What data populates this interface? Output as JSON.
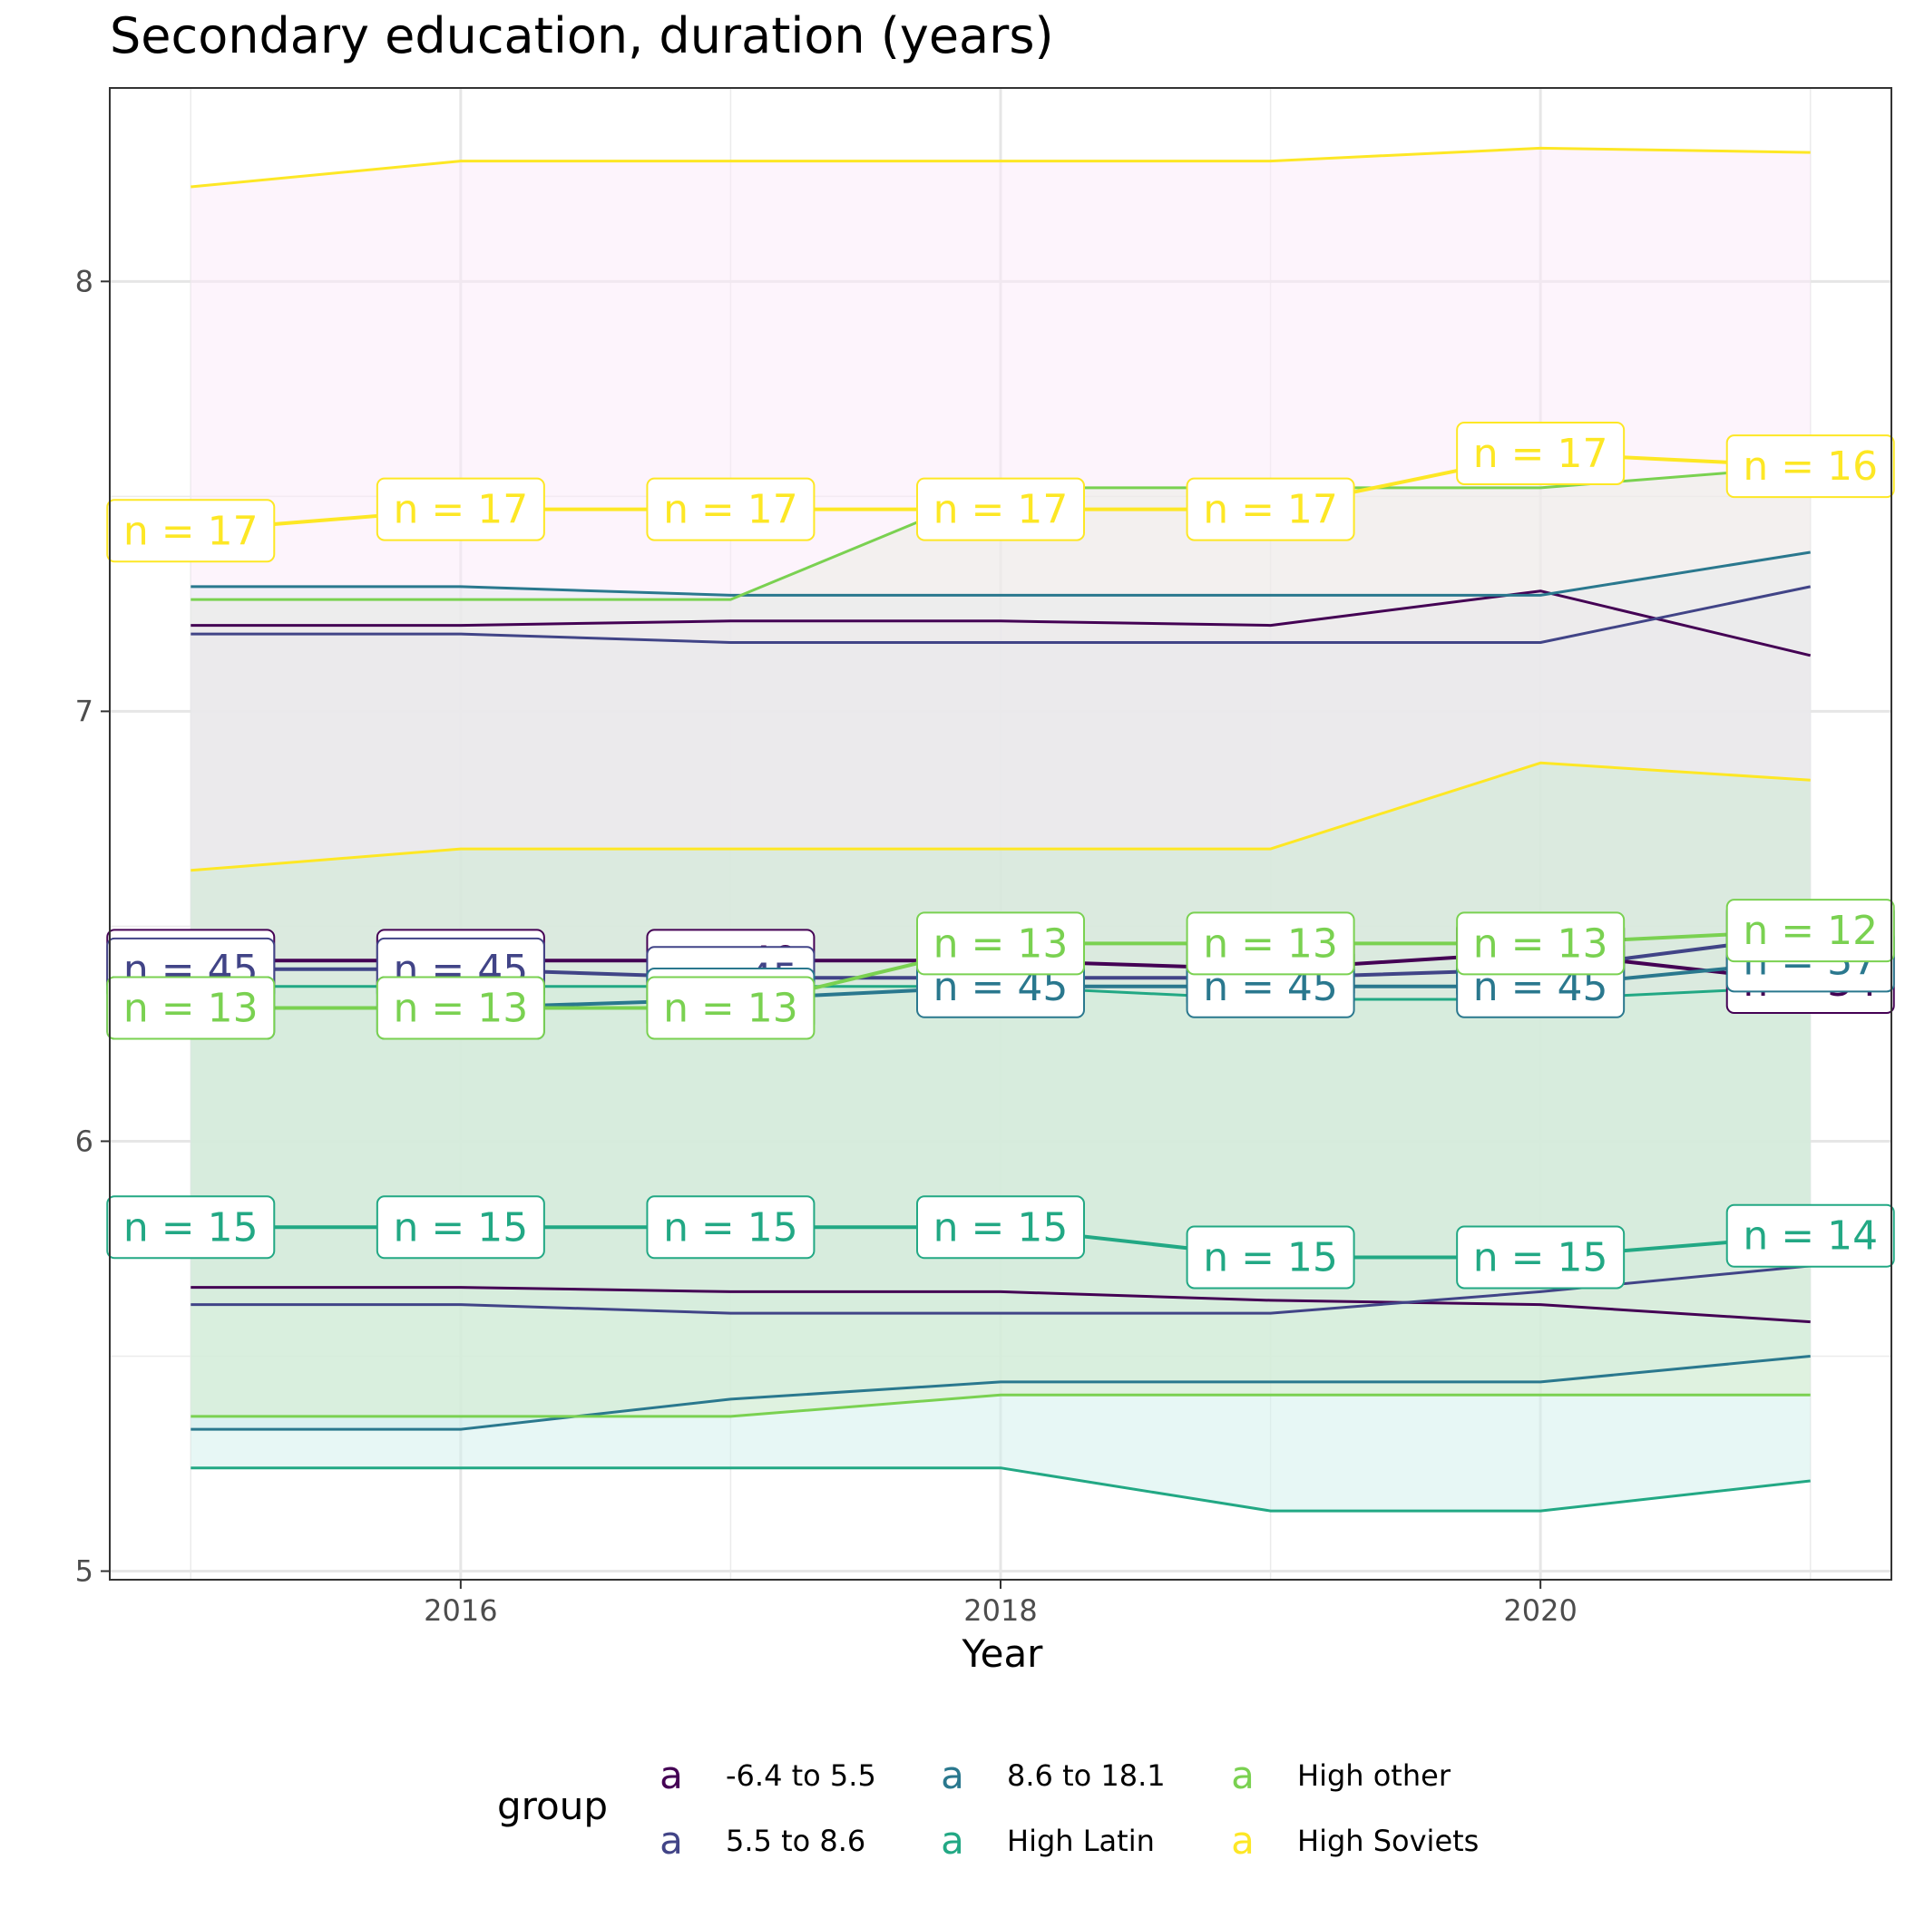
{
  "chart_data": {
    "type": "line",
    "title": "Secondary education, duration (years)",
    "xlabel": "Year",
    "ylabel": "",
    "xlim": [
      2014.7,
      2021.3
    ],
    "ylim": [
      4.98,
      8.45
    ],
    "x_ticks": [
      2016,
      2018,
      2020
    ],
    "y_ticks": [
      5,
      6,
      7,
      8
    ],
    "grid": true,
    "legend": {
      "title": "group",
      "position": "bottom",
      "key_glyph": "a",
      "entries": [
        "-6.4 to 5.5",
        "5.5 to 8.6",
        "8.6 to 18.1",
        "High Latin",
        "High other",
        "High Soviets"
      ]
    },
    "colors": {
      "-6.4 to 5.5": "#440154",
      "5.5 to 8.6": "#414487",
      "8.6 to 18.1": "#2A788E",
      "High Latin": "#22A884",
      "High other": "#7AD151",
      "High Soviets": "#FDE725"
    },
    "x": [
      2015,
      2016,
      2017,
      2018,
      2019,
      2020,
      2021
    ],
    "series": [
      {
        "name": "-6.4 to 5.5",
        "color": "#440154",
        "fill": "#F8E0F8",
        "mean": [
          6.42,
          6.42,
          6.42,
          6.42,
          6.4,
          6.44,
          6.37
        ],
        "upper": [
          7.2,
          7.2,
          7.21,
          7.21,
          7.2,
          7.28,
          7.13
        ],
        "lower": [
          5.66,
          5.66,
          5.65,
          5.65,
          5.63,
          5.62,
          5.58
        ],
        "n": [
          45,
          45,
          40,
          45,
          45,
          45,
          34
        ]
      },
      {
        "name": "5.5 to 8.6",
        "color": "#414487",
        "fill": "#E4E0F8",
        "mean": [
          6.4,
          6.4,
          6.38,
          6.38,
          6.38,
          6.4,
          6.48
        ],
        "upper": [
          7.18,
          7.18,
          7.16,
          7.16,
          7.16,
          7.16,
          7.29
        ],
        "lower": [
          5.62,
          5.62,
          5.6,
          5.6,
          5.6,
          5.65,
          5.71
        ],
        "n": [
          45,
          45,
          45,
          45,
          45,
          45,
          37
        ]
      },
      {
        "name": "8.6 to 18.1",
        "color": "#2A788E",
        "fill": "#CDE6EC",
        "mean": [
          6.31,
          6.31,
          6.33,
          6.36,
          6.36,
          6.36,
          6.42
        ],
        "upper": [
          7.29,
          7.29,
          7.27,
          7.27,
          7.27,
          7.27,
          7.37
        ],
        "lower": [
          5.33,
          5.33,
          5.4,
          5.44,
          5.44,
          5.44,
          5.5
        ],
        "n": [
          45,
          45,
          45,
          45,
          45,
          45,
          37
        ]
      },
      {
        "name": "High Latin",
        "color": "#22A884",
        "fill": "#D0F0EC",
        "mean": [
          5.8,
          5.8,
          5.8,
          5.8,
          5.73,
          5.73,
          5.78
        ],
        "upper": [
          6.36,
          6.36,
          6.36,
          6.36,
          6.33,
          6.33,
          6.36
        ],
        "lower": [
          5.24,
          5.24,
          5.24,
          5.24,
          5.14,
          5.14,
          5.21
        ],
        "n": [
          15,
          15,
          15,
          15,
          15,
          15,
          14
        ]
      },
      {
        "name": "High other",
        "color": "#7AD151",
        "fill": "#D8EDCB",
        "mean": [
          6.31,
          6.31,
          6.31,
          6.46,
          6.46,
          6.46,
          6.49
        ],
        "upper": [
          7.26,
          7.26,
          7.26,
          7.52,
          7.52,
          7.52,
          7.57
        ],
        "lower": [
          5.36,
          5.36,
          5.36,
          5.41,
          5.41,
          5.41,
          5.41
        ],
        "n": [
          13,
          13,
          13,
          13,
          13,
          13,
          12
        ]
      },
      {
        "name": "High Soviets",
        "color": "#FDE725",
        "fill": "#FCEAF9",
        "mean": [
          7.42,
          7.47,
          7.47,
          7.47,
          7.47,
          7.6,
          7.57
        ],
        "upper": [
          8.22,
          8.28,
          8.28,
          8.28,
          8.28,
          8.31,
          8.3
        ],
        "lower": [
          6.63,
          6.68,
          6.68,
          6.68,
          6.68,
          6.88,
          6.84
        ],
        "n": [
          17,
          17,
          17,
          17,
          17,
          17,
          16
        ]
      }
    ],
    "label_prefix": "n = "
  }
}
